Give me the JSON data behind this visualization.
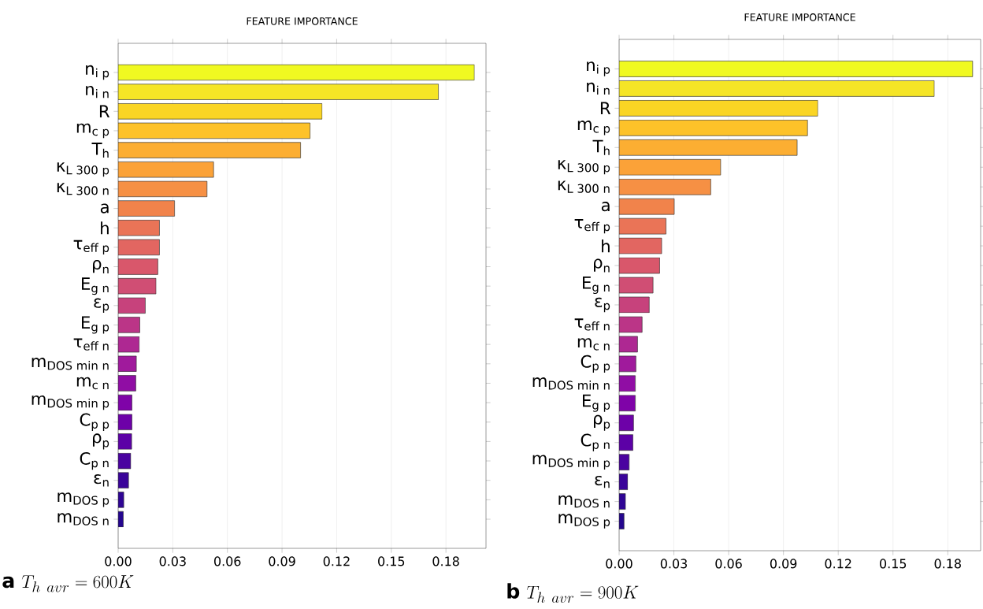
{
  "chart_data": [
    {
      "type": "bar",
      "orientation": "horizontal",
      "title": "FEATURE IMPORTANCE",
      "categories": [
        "\\text{n}_{\\text{i p}}",
        "\\text{n}_{\\text{i n}}",
        "\\text{R}",
        "\\text{m}_{\\text{c p}}",
        "\\text{T}_{\\text{h}}",
        "\\text{κ}_{\\text{L 300 p}}",
        "\\text{κ}_{\\text{L 300 n}}",
        "\\text{a}",
        "\\text{h}",
        "\\text{τ}_{\\text{eff p}}",
        "\\text{ρ}_{\\text{n}}",
        "\\text{E}_{\\text{g n}}",
        "\\text{ε}_{\\text{p}}",
        "\\text{E}_{\\text{g p}}",
        "\\text{τ}_{\\text{eff n}}",
        "\\text{m}_{\\text{DOS min n}}",
        "\\text{m}_{\\text{c n}}",
        "\\text{m}_{\\text{DOS min p}}",
        "\\text{C}_{\\text{p p}}",
        "\\text{ρ}_{\\text{p}}",
        "\\text{C}_{\\text{p n}}",
        "\\text{ε}_{\\text{n}}",
        "\\text{m}_{\\text{DOS p}}",
        "\\text{m}_{\\text{DOS n}}"
      ],
      "values": [
        0.1956,
        0.1759,
        0.112,
        0.1054,
        0.1002,
        0.0524,
        0.0488,
        0.031,
        0.0227,
        0.0227,
        0.0218,
        0.0208,
        0.0149,
        0.0119,
        0.0116,
        0.01,
        0.0097,
        0.0076,
        0.0076,
        0.0074,
        0.0069,
        0.0057,
        0.0031,
        0.0028
      ],
      "colors": [
        "#f0f921",
        "#f5e526",
        "#fad524",
        "#fdc229",
        "#fcae32",
        "#fba238",
        "#f69044",
        "#f1834b",
        "#ea7457",
        "#e26661",
        "#d9576b",
        "#d04e74",
        "#c7427c",
        "#bb3587",
        "#ae2892",
        "#a01a9c",
        "#900da4",
        "#7f03a8",
        "#6d01a8",
        "#5c01a6",
        "#4a02a0",
        "#3a049a",
        "#2f0595",
        "#25068f"
      ],
      "xlim": [
        0,
        0.202
      ],
      "xticks": [
        {
          "value": 0,
          "label": "0.00"
        },
        {
          "value": 0.03,
          "label": "0.03"
        },
        {
          "value": 0.06,
          "label": "0.06"
        },
        {
          "value": 0.09,
          "label": "0.09"
        },
        {
          "value": 0.12,
          "label": "0.12"
        },
        {
          "value": 0.15,
          "label": "0.15"
        },
        {
          "value": 0.18,
          "label": "0.18"
        }
      ],
      "grid": "x",
      "annotations": [
        "\\mathbf{a}\\ T_{h\\ avr} = 600K"
      ]
    },
    {
      "type": "bar",
      "orientation": "horizontal",
      "title": "FEATURE IMPORTANCE",
      "categories": [
        "\\text{n}_{\\text{i p}}",
        "\\text{n}_{\\text{i n}}",
        "\\text{R}",
        "\\text{m}_{\\text{c p}}",
        "\\text{T}_{\\text{h}}",
        "\\text{κ}_{\\text{L 300 p}}",
        "\\text{κ}_{\\text{L 300 n}}",
        "\\text{a}",
        "\\text{τ}_{\\text{eff p}}",
        "\\text{h}",
        "\\text{ρ}_{\\text{n}}",
        "\\text{E}_{\\text{g n}}",
        "\\text{ε}_{\\text{p}}",
        "\\text{τ}_{\\text{eff n}}",
        "\\text{m}_{\\text{c n}}",
        "\\text{C}_{\\text{p p}}",
        "\\text{m}_{\\text{DOS min n}}",
        "\\text{E}_{\\text{g p}}",
        "\\text{ρ}_{\\text{p}}",
        "\\text{C}_{\\text{p n}}",
        "\\text{m}_{\\text{DOS min p}}",
        "\\text{ε}_{\\text{n}}",
        "\\text{m}_{\\text{DOS n}}",
        "\\text{m}_{\\text{DOS p}}"
      ],
      "values": [
        0.1936,
        0.1726,
        0.1088,
        0.1032,
        0.0975,
        0.0556,
        0.0502,
        0.0302,
        0.0257,
        0.0233,
        0.0222,
        0.0186,
        0.0165,
        0.0126,
        0.0101,
        0.0092,
        0.0089,
        0.0089,
        0.0079,
        0.0076,
        0.0055,
        0.0047,
        0.0035,
        0.0027
      ],
      "colors": [
        "#f0f921",
        "#f5e526",
        "#fad524",
        "#fdc229",
        "#fcae32",
        "#fba238",
        "#f69044",
        "#f1834b",
        "#ea7457",
        "#e26661",
        "#d9576b",
        "#d04e74",
        "#c7427c",
        "#bb3587",
        "#ae2892",
        "#a01a9c",
        "#900da4",
        "#7f03a8",
        "#6d01a8",
        "#5c01a6",
        "#4a02a0",
        "#3a049a",
        "#2f0595",
        "#25068f"
      ],
      "xlim": [
        0,
        0.198
      ],
      "xticks": [
        {
          "value": 0,
          "label": "0.00"
        },
        {
          "value": 0.03,
          "label": "0.03"
        },
        {
          "value": 0.06,
          "label": "0.06"
        },
        {
          "value": 0.09,
          "label": "0.09"
        },
        {
          "value": 0.12,
          "label": "0.12"
        },
        {
          "value": 0.15,
          "label": "0.15"
        },
        {
          "value": 0.18,
          "label": "0.18"
        }
      ],
      "grid": "x",
      "annotations": [
        "\\mathbf{b}\\ T_{h\\ avr} = 900K"
      ]
    }
  ]
}
